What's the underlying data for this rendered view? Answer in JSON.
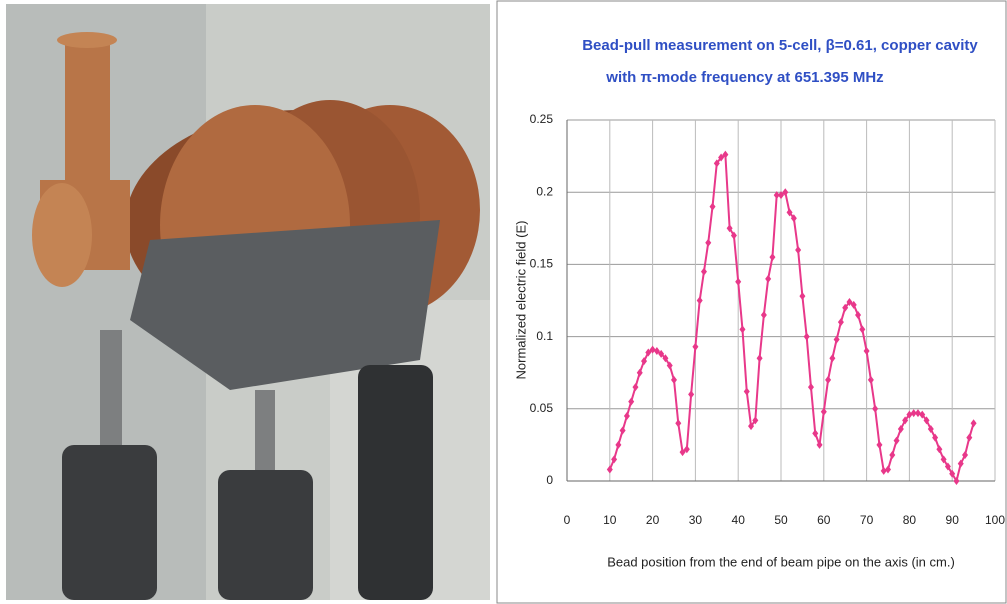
{
  "chart_data": {
    "type": "line",
    "title": [
      "Bead-pull measurement on 5-cell, β=0.61, copper cavity",
      "with π-mode  frequency at 651.395 MHz"
    ],
    "xlabel": "Bead position from the end of beam pipe on the axis (in cm.)",
    "ylabel": "Normalized electric field (E)",
    "xlim": [
      0,
      100
    ],
    "xticks": [
      0,
      10,
      20,
      30,
      40,
      50,
      60,
      70,
      80,
      90,
      100
    ],
    "ylim": [
      0,
      0.25
    ],
    "yticks": [
      0,
      0.05,
      0.1,
      0.15,
      0.2,
      0.25
    ],
    "grid": true,
    "x": [
      10,
      11,
      12,
      13,
      14,
      15,
      16,
      17,
      18,
      19,
      20,
      21,
      22,
      23,
      24,
      25,
      26,
      27,
      28,
      29,
      30,
      31,
      32,
      33,
      34,
      35,
      36,
      37,
      38,
      39,
      40,
      41,
      42,
      43,
      44,
      45,
      46,
      47,
      48,
      49,
      50,
      51,
      52,
      53,
      54,
      55,
      56,
      57,
      58,
      59,
      60,
      61,
      62,
      63,
      64,
      65,
      66,
      67,
      68,
      69,
      70,
      71,
      72,
      73,
      74,
      75,
      76,
      77,
      78,
      79,
      80,
      81,
      82,
      83,
      84,
      85,
      86,
      87,
      88,
      89,
      90,
      91,
      92,
      93,
      94,
      95
    ],
    "series": [
      {
        "color": "#e8388a",
        "values": [
          0.008,
          0.015,
          0.025,
          0.035,
          0.045,
          0.055,
          0.065,
          0.075,
          0.083,
          0.089,
          0.091,
          0.09,
          0.088,
          0.085,
          0.08,
          0.07,
          0.04,
          0.02,
          0.022,
          0.06,
          0.093,
          0.125,
          0.145,
          0.165,
          0.19,
          0.22,
          0.224,
          0.226,
          0.175,
          0.17,
          0.138,
          0.105,
          0.062,
          0.038,
          0.042,
          0.085,
          0.115,
          0.14,
          0.155,
          0.198,
          0.198,
          0.2,
          0.186,
          0.182,
          0.16,
          0.128,
          0.1,
          0.065,
          0.033,
          0.025,
          0.048,
          0.07,
          0.085,
          0.098,
          0.11,
          0.12,
          0.124,
          0.122,
          0.115,
          0.105,
          0.09,
          0.07,
          0.05,
          0.025,
          0.007,
          0.008,
          0.018,
          0.028,
          0.036,
          0.042,
          0.046,
          0.047,
          0.047,
          0.046,
          0.042,
          0.036,
          0.03,
          0.022,
          0.015,
          0.01,
          0.005,
          0,
          0.012,
          0.018,
          0.03,
          0.04
        ]
      }
    ]
  }
}
